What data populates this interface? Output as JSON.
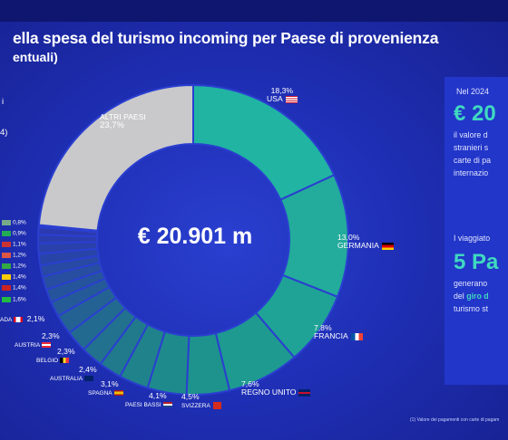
{
  "header": {
    "title": "ella spesa del turismo incoming per Paese di provenienza",
    "subtitle": "entuali)"
  },
  "left_fragments": [
    "i",
    "4)"
  ],
  "chart_data": {
    "type": "pie",
    "variant": "donut",
    "center_label": "€ 20.901 m",
    "slices": [
      {
        "label": "USA",
        "display": "18,3%",
        "value": 18.3,
        "color": "#21b4a3"
      },
      {
        "label": "GERMANIA",
        "display": "13,0%",
        "value": 13.0,
        "color": "#23ab9c"
      },
      {
        "label": "FRANCIA",
        "display": "7,8%",
        "value": 7.8,
        "color": "#1fa396"
      },
      {
        "label": "REGNO UNITO",
        "display": "7,6%",
        "value": 7.6,
        "color": "#1e9a90"
      },
      {
        "label": "SVIZZERA",
        "display": "4,5%",
        "value": 4.5,
        "color": "#1e938d"
      },
      {
        "label": "PAESI BASSI",
        "display": "4,1%",
        "value": 4.1,
        "color": "#1f8a8c"
      },
      {
        "label": "SPAGNA",
        "display": "3,1%",
        "value": 3.1,
        "color": "#20828b"
      },
      {
        "label": "AUSTRALIA",
        "display": "2,4%",
        "value": 2.4,
        "color": "#217a8c"
      },
      {
        "label": "BELGIO",
        "display": "2,3%",
        "value": 2.3,
        "color": "#22718e"
      },
      {
        "label": "AUSTRIA",
        "display": "2,3%",
        "value": 2.3,
        "color": "#236a91"
      },
      {
        "label": "CANADA",
        "display": "2,1%",
        "value": 2.1,
        "color": "#246294"
      },
      {
        "label": "",
        "display": "1,6%",
        "value": 1.6,
        "color": "#255a98"
      },
      {
        "label": "",
        "display": "1,4%",
        "value": 1.4,
        "color": "#26549c"
      },
      {
        "label": "",
        "display": "1,4%",
        "value": 1.4,
        "color": "#274ea0"
      },
      {
        "label": "",
        "display": "1,2%",
        "value": 1.2,
        "color": "#2849a4"
      },
      {
        "label": "",
        "display": "1,2%",
        "value": 1.2,
        "color": "#2944a8"
      },
      {
        "label": "",
        "display": "1,1%",
        "value": 1.1,
        "color": "#2a40ab"
      },
      {
        "label": "",
        "display": "0,9%",
        "value": 0.9,
        "color": "#2b3dae"
      },
      {
        "label": "",
        "display": "0,8%",
        "value": 0.8,
        "color": "#2c3ab1"
      },
      {
        "label": "",
        "display": "",
        "value": 0.2,
        "color": "#2d38b3"
      },
      {
        "label": "ALTRI PAESI",
        "display": "23,7%",
        "value": 23.7,
        "color": "#c9c9cb"
      }
    ],
    "labels": {
      "usa": {
        "value": "18,3%",
        "name": "USA"
      },
      "germania": {
        "value": "13,0%",
        "name": "GERMANIA"
      },
      "francia": {
        "value": "7,8%",
        "name": "FRANCIA"
      },
      "regno_unito": {
        "value": "7,6%",
        "name": "REGNO UNITO"
      },
      "svizzera": {
        "value": "4,5%",
        "name": "SVIZZERA"
      },
      "paesi_bassi": {
        "value": "4,1%",
        "name": "PAESI BASSI"
      },
      "spagna": {
        "value": "3,1%",
        "name": "SPAGNA"
      },
      "australia": {
        "value": "2,4%",
        "name": "AUSTRALIA"
      },
      "belgio": {
        "value": "2,3%",
        "name": "BELGIO"
      },
      "austria": {
        "value": "2,3%",
        "name": "AUSTRIA"
      },
      "canada": {
        "value": "2,1%",
        "name": "ADA"
      },
      "altri": {
        "value": "23,7%",
        "name": "ALTRI PAESI"
      }
    },
    "small_values": [
      "0,8%",
      "0,9%",
      "1,1%",
      "1,2%",
      "1,2%",
      "1,4%",
      "1,4%",
      "1,6%"
    ]
  },
  "side": {
    "date": "Nel 2024",
    "value": "€ 20",
    "lines": [
      "il valore d",
      "stranieri s",
      "carte di pa",
      "internazio"
    ],
    "intro": "I viaggiato",
    "big": "5 Pa",
    "lines2": [
      "generano",
      "del",
      "turismo st"
    ],
    "accent_word": "giro d"
  },
  "footnote": "(1) Valore dei pagamenti con carte di pagam"
}
